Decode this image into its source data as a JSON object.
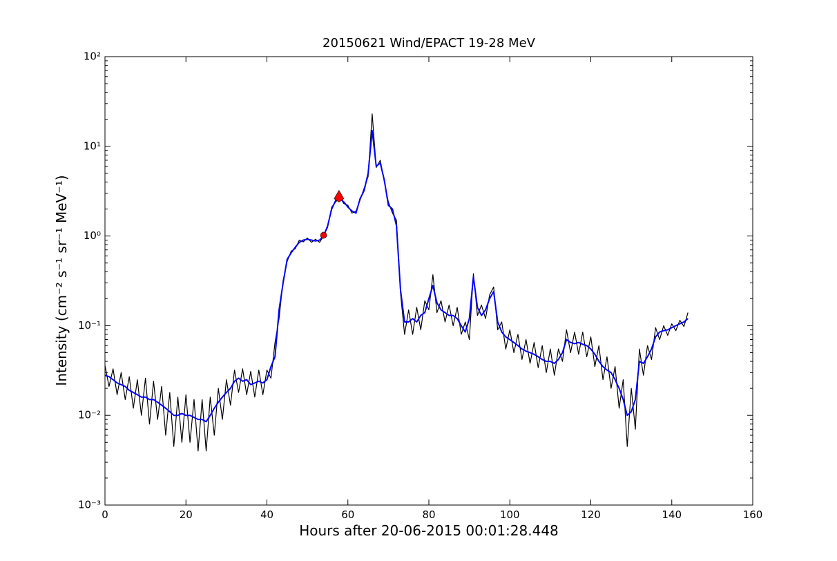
{
  "chart_data": {
    "type": "line",
    "title": "20150621 Wind/EPACT 19-28 MeV",
    "x_label": "Hours after 20-06-2015 00:01:28.448",
    "y_label": "Intensity (cm⁻² s⁻¹ sr⁻¹ MeV⁻¹)",
    "y_scale": "log",
    "minor_ticks": true,
    "xlim": [
      0,
      160
    ],
    "xticks": [
      0,
      20,
      40,
      60,
      80,
      100,
      120,
      140,
      160
    ],
    "ylim": [
      0.001,
      100
    ],
    "yticks": [
      {
        "value": 0.001,
        "label": "10⁻³"
      },
      {
        "value": 0.01,
        "label": "10⁻²"
      },
      {
        "value": 0.1,
        "label": "10⁻¹"
      },
      {
        "value": 1,
        "label": "10⁰"
      },
      {
        "value": 10,
        "label": "10¹"
      },
      {
        "value": 100,
        "label": "10²"
      }
    ],
    "x": [
      0,
      1,
      2,
      3,
      4,
      5,
      6,
      7,
      8,
      9,
      10,
      11,
      12,
      13,
      14,
      15,
      16,
      17,
      18,
      19,
      20,
      21,
      22,
      23,
      24,
      25,
      26,
      27,
      28,
      29,
      30,
      31,
      32,
      33,
      34,
      35,
      36,
      37,
      38,
      39,
      40,
      41,
      42,
      43,
      44,
      45,
      46,
      47,
      48,
      49,
      50,
      51,
      52,
      53,
      54,
      55,
      56,
      57,
      58,
      59,
      60,
      61,
      62,
      63,
      64,
      65,
      66,
      67,
      68,
      69,
      70,
      71,
      72,
      73,
      74,
      75,
      76,
      77,
      78,
      79,
      80,
      81,
      82,
      83,
      84,
      85,
      86,
      87,
      88,
      89,
      90,
      91,
      92,
      93,
      94,
      95,
      96,
      97,
      98,
      99,
      100,
      101,
      102,
      103,
      104,
      105,
      106,
      107,
      108,
      109,
      110,
      111,
      112,
      113,
      114,
      115,
      116,
      117,
      118,
      119,
      120,
      121,
      122,
      123,
      124,
      125,
      126,
      127,
      128,
      129,
      130,
      131,
      132,
      133,
      134,
      135,
      136,
      137,
      138,
      139,
      140,
      141,
      142,
      143,
      144
    ],
    "series": [
      {
        "color": "#000000",
        "width": 1.2,
        "values": [
          0.036,
          0.021,
          0.033,
          0.017,
          0.03,
          0.015,
          0.027,
          0.012,
          0.025,
          0.01,
          0.026,
          0.008,
          0.024,
          0.009,
          0.021,
          0.006,
          0.018,
          0.0045,
          0.016,
          0.005,
          0.017,
          0.005,
          0.015,
          0.004,
          0.015,
          0.004,
          0.016,
          0.006,
          0.02,
          0.009,
          0.025,
          0.013,
          0.032,
          0.018,
          0.033,
          0.017,
          0.031,
          0.016,
          0.032,
          0.017,
          0.032,
          0.026,
          0.065,
          0.12,
          0.32,
          0.52,
          0.68,
          0.72,
          0.9,
          0.86,
          0.95,
          0.85,
          0.92,
          0.85,
          1.0,
          1.25,
          2.1,
          2.4,
          2.7,
          2.3,
          2.2,
          1.8,
          1.9,
          2.5,
          3.4,
          4.6,
          23,
          5.8,
          7.0,
          4.0,
          2.4,
          1.8,
          1.5,
          0.23,
          0.08,
          0.15,
          0.08,
          0.16,
          0.09,
          0.19,
          0.15,
          0.37,
          0.14,
          0.19,
          0.11,
          0.17,
          0.1,
          0.16,
          0.08,
          0.11,
          0.07,
          0.38,
          0.13,
          0.17,
          0.12,
          0.22,
          0.27,
          0.09,
          0.11,
          0.055,
          0.09,
          0.05,
          0.08,
          0.042,
          0.07,
          0.038,
          0.065,
          0.034,
          0.06,
          0.03,
          0.055,
          0.028,
          0.055,
          0.04,
          0.09,
          0.05,
          0.085,
          0.048,
          0.085,
          0.045,
          0.075,
          0.035,
          0.06,
          0.025,
          0.045,
          0.02,
          0.035,
          0.012,
          0.025,
          0.0045,
          0.02,
          0.007,
          0.055,
          0.028,
          0.06,
          0.042,
          0.095,
          0.07,
          0.1,
          0.078,
          0.105,
          0.088,
          0.115,
          0.098,
          0.14
        ]
      },
      {
        "color": "#0000ff",
        "width": 2,
        "values": [
          0.028,
          0.027,
          0.025,
          0.023,
          0.022,
          0.021,
          0.019,
          0.018,
          0.017,
          0.016,
          0.016,
          0.015,
          0.015,
          0.014,
          0.013,
          0.012,
          0.011,
          0.01,
          0.01,
          0.0105,
          0.01,
          0.01,
          0.0095,
          0.009,
          0.009,
          0.0085,
          0.01,
          0.012,
          0.014,
          0.016,
          0.018,
          0.02,
          0.024,
          0.026,
          0.024,
          0.025,
          0.022,
          0.023,
          0.024,
          0.023,
          0.025,
          0.035,
          0.045,
          0.15,
          0.3,
          0.55,
          0.65,
          0.75,
          0.85,
          0.9,
          0.92,
          0.9,
          0.88,
          0.9,
          1.0,
          1.3,
          2.0,
          2.5,
          2.6,
          2.4,
          2.1,
          1.9,
          1.8,
          2.6,
          3.2,
          5.0,
          15,
          6.0,
          6.5,
          4.2,
          2.2,
          2.0,
          1.3,
          0.25,
          0.11,
          0.11,
          0.12,
          0.11,
          0.13,
          0.14,
          0.2,
          0.28,
          0.18,
          0.15,
          0.14,
          0.13,
          0.13,
          0.12,
          0.1,
          0.085,
          0.12,
          0.35,
          0.16,
          0.13,
          0.15,
          0.2,
          0.24,
          0.11,
          0.085,
          0.075,
          0.07,
          0.065,
          0.06,
          0.055,
          0.052,
          0.05,
          0.048,
          0.045,
          0.042,
          0.04,
          0.04,
          0.038,
          0.042,
          0.05,
          0.07,
          0.065,
          0.063,
          0.065,
          0.062,
          0.06,
          0.055,
          0.048,
          0.04,
          0.035,
          0.032,
          0.03,
          0.025,
          0.02,
          0.015,
          0.01,
          0.011,
          0.015,
          0.04,
          0.038,
          0.045,
          0.055,
          0.075,
          0.085,
          0.088,
          0.09,
          0.095,
          0.1,
          0.105,
          0.11,
          0.12
        ]
      }
    ],
    "markers": [
      {
        "x": 54,
        "y": 1.02,
        "shape": "circle",
        "color": "#ff0000"
      },
      {
        "x": 57.8,
        "y": 2.75,
        "shape": "triangle",
        "color": "#ff0000"
      }
    ]
  }
}
